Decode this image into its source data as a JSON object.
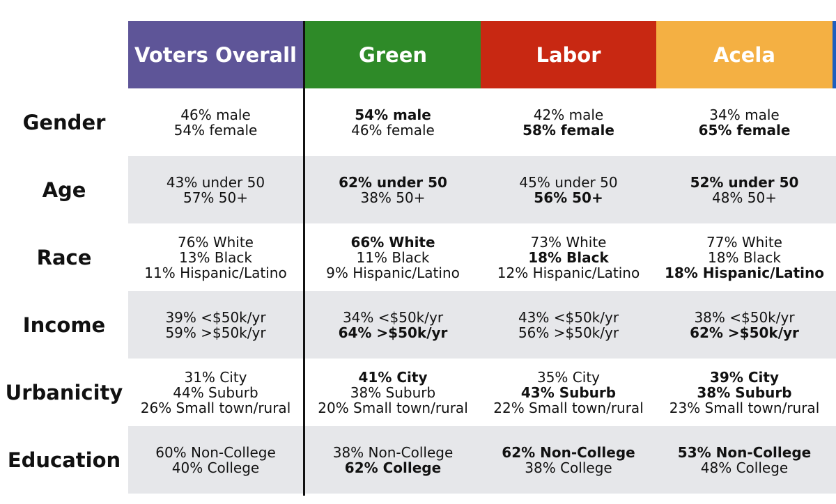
{
  "headers": {
    "voters_overall": "Voters Overall",
    "green": "Green",
    "labor": "Labor",
    "acela": "Acela"
  },
  "colors": {
    "voters_overall": "#5e5598",
    "green": "#2e8a28",
    "labor": "#c82812",
    "acela": "#f4b043",
    "shade": "#e6e7ea"
  },
  "rows": [
    {
      "label": "Gender",
      "overall": [
        "46% male",
        "54% female"
      ],
      "green": [
        "54% male",
        "46% female"
      ],
      "labor": [
        "42% male",
        "58% female"
      ],
      "acela": [
        "34% male",
        "65% female"
      ]
    },
    {
      "label": "Age",
      "overall": [
        "43% under 50",
        "57% 50+"
      ],
      "green": [
        "62% under 50",
        "38% 50+"
      ],
      "labor": [
        "45% under 50",
        "56% 50+"
      ],
      "acela": [
        "52% under 50",
        "48% 50+"
      ]
    },
    {
      "label": "Race",
      "overall": [
        "76% White",
        "13% Black",
        "11% Hispanic/Latino"
      ],
      "green": [
        "66% White",
        "11% Black",
        "9% Hispanic/Latino"
      ],
      "labor": [
        "73% White",
        "18% Black",
        "12% Hispanic/Latino"
      ],
      "acela": [
        "77% White",
        "18% Black",
        "18% Hispanic/Latino"
      ]
    },
    {
      "label": "Income",
      "overall": [
        "39% <$50k/yr",
        "59% >$50k/yr"
      ],
      "green": [
        "34% <$50k/yr",
        "64% >$50k/yr"
      ],
      "labor": [
        "43% <$50k/yr",
        "56% >$50k/yr"
      ],
      "acela": [
        "38% <$50k/yr",
        "62% >$50k/yr"
      ]
    },
    {
      "label": "Urbanicity",
      "overall": [
        "31% City",
        "44% Suburb",
        "26% Small town/rural"
      ],
      "green": [
        "41% City",
        "38% Suburb",
        "20% Small town/rural"
      ],
      "labor": [
        "35% City",
        "43% Suburb",
        "22% Small town/rural"
      ],
      "acela": [
        "39% City",
        "38% Suburb",
        "23% Small town/rural"
      ]
    },
    {
      "label": "Education",
      "overall": [
        "60% Non-College",
        "40% College"
      ],
      "green": [
        "38% Non-College",
        "62% College"
      ],
      "labor": [
        "62% Non-College",
        "38% College"
      ],
      "acela": [
        "53% Non-College",
        "48% College"
      ]
    }
  ]
}
